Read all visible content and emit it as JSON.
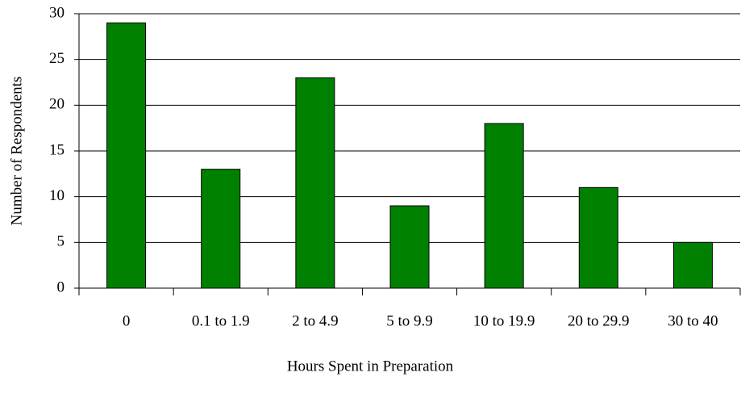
{
  "chart_data": {
    "type": "bar",
    "x_label": "Hours Spent in Preparation",
    "y_label": "Number of Respondents",
    "categories": [
      "0",
      "0.1 to 1.9",
      "2 to 4.9",
      "5 to 9.9",
      "10 to 19.9",
      "20 to 29.9",
      "30 to 40"
    ],
    "values": [
      29,
      13,
      23,
      9,
      18,
      11,
      5
    ],
    "color": "#008000",
    "ylim": [
      0,
      30
    ],
    "yticks": [
      0,
      5,
      10,
      15,
      20,
      25,
      30
    ],
    "grid": true
  }
}
